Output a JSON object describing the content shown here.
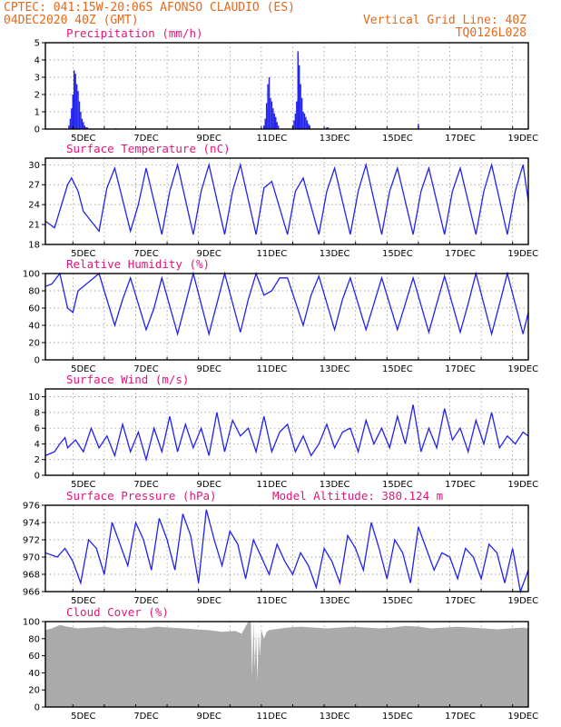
{
  "header": {
    "line1_left": "CPTEC:   041:15W-20:06S  AFONSO CLAUDIO (ES)",
    "line2_left": "04DEC2020 40Z (GMT)",
    "line1_right": "Vertical Grid Line: 40Z",
    "line2_right": "TQ0126L028"
  },
  "x_axis": {
    "labels": [
      "5DEC",
      "7DEC",
      "9DEC",
      "11DEC",
      "13DEC",
      "15DEC",
      "17DEC",
      "19DEC"
    ],
    "start_hours": -5,
    "end_hours": 364
  },
  "colors": {
    "header": "#e3691a",
    "title": "#e0167a",
    "series": "#2222ee",
    "cloud": "#aaaaaa"
  },
  "chart_data": [
    {
      "type": "bar",
      "title": "Precipitation (mm/h)",
      "ylim": [
        0,
        5
      ],
      "yticks": [
        0,
        1,
        2,
        3,
        4,
        5
      ],
      "x_unit": "hours since 04DEC2020 00Z",
      "x": [
        13,
        14,
        15,
        16,
        17,
        18,
        19,
        20,
        21,
        22,
        23,
        24,
        25,
        26,
        27,
        49,
        162,
        163,
        164,
        165,
        166,
        167,
        168,
        169,
        170,
        171,
        172,
        173,
        184,
        185,
        186,
        187,
        188,
        189,
        190,
        191,
        192,
        193,
        194,
        195,
        196,
        197,
        210,
        211,
        232,
        280
      ],
      "values": [
        0.2,
        0.6,
        1.2,
        2.0,
        3.4,
        3.2,
        2.6,
        2.2,
        1.6,
        1.0,
        0.6,
        0.4,
        0.2,
        0.1,
        0.1,
        0.05,
        0.2,
        0.6,
        1.5,
        2.6,
        3.0,
        1.8,
        1.6,
        1.2,
        0.9,
        0.7,
        0.4,
        0.2,
        0.2,
        0.5,
        0.9,
        1.6,
        4.5,
        3.7,
        2.6,
        1.8,
        1.0,
        0.9,
        0.7,
        0.5,
        0.3,
        0.2,
        0.1,
        0.1,
        0.08,
        0.3
      ]
    },
    {
      "type": "line",
      "title": "Surface Temperature (nC)",
      "ylim": [
        18,
        31
      ],
      "yticks": [
        18,
        21,
        24,
        27,
        30
      ],
      "x_unit": "hours since 04DEC2020 00Z",
      "x": [
        -5,
        2,
        12,
        15,
        20,
        24,
        36,
        42,
        48,
        60,
        66,
        72,
        84,
        90,
        96,
        108,
        114,
        120,
        132,
        138,
        144,
        156,
        162,
        168,
        180,
        186,
        192,
        204,
        210,
        216,
        228,
        234,
        240,
        252,
        258,
        264,
        276,
        282,
        288,
        300,
        306,
        312,
        324,
        330,
        336,
        348,
        354,
        360,
        364
      ],
      "values": [
        21.5,
        20.5,
        27.0,
        28.0,
        26.0,
        23.0,
        20.0,
        26.5,
        29.5,
        20.0,
        24.0,
        29.5,
        19.5,
        26.0,
        30.0,
        19.5,
        26.0,
        30.0,
        19.5,
        26.0,
        30.0,
        19.5,
        26.5,
        27.5,
        19.5,
        26.0,
        28.0,
        19.5,
        26.0,
        29.5,
        19.5,
        26.0,
        30.0,
        19.5,
        26.0,
        29.5,
        19.5,
        26.0,
        29.5,
        19.5,
        26.0,
        29.5,
        19.5,
        26.0,
        30.0,
        19.5,
        26.0,
        30.0,
        24.5
      ]
    },
    {
      "type": "line",
      "title": "Relative Humidity (%)",
      "ylim": [
        0,
        100
      ],
      "yticks": [
        0,
        20,
        40,
        60,
        80,
        100
      ],
      "x_unit": "hours since 04DEC2020 00Z",
      "x": [
        -5,
        0,
        6,
        12,
        16,
        20,
        28,
        36,
        48,
        54,
        60,
        72,
        78,
        84,
        96,
        102,
        108,
        120,
        126,
        132,
        144,
        150,
        156,
        162,
        168,
        174,
        180,
        192,
        198,
        204,
        216,
        222,
        228,
        240,
        246,
        252,
        264,
        270,
        276,
        288,
        294,
        300,
        312,
        318,
        324,
        336,
        342,
        348,
        360,
        364
      ],
      "values": [
        85,
        88,
        100,
        60,
        55,
        80,
        90,
        100,
        40,
        70,
        95,
        35,
        60,
        95,
        30,
        65,
        100,
        30,
        65,
        100,
        32,
        70,
        100,
        75,
        80,
        95,
        95,
        40,
        75,
        97,
        35,
        70,
        95,
        35,
        65,
        95,
        35,
        65,
        95,
        32,
        65,
        97,
        32,
        65,
        100,
        30,
        65,
        100,
        30,
        55
      ]
    },
    {
      "type": "line",
      "title": "Surface Wind (m/s)",
      "ylim": [
        0,
        11
      ],
      "yticks": [
        0,
        2,
        4,
        6,
        8,
        10
      ],
      "x_unit": "hours since 04DEC2020 00Z",
      "x": [
        -5,
        2,
        6,
        10,
        12,
        18,
        24,
        30,
        36,
        42,
        48,
        54,
        60,
        66,
        72,
        78,
        84,
        90,
        96,
        102,
        108,
        114,
        120,
        126,
        132,
        138,
        144,
        150,
        156,
        162,
        168,
        174,
        180,
        186,
        192,
        198,
        204,
        210,
        216,
        222,
        228,
        234,
        240,
        246,
        252,
        258,
        264,
        270,
        276,
        282,
        288,
        294,
        300,
        306,
        312,
        318,
        324,
        330,
        336,
        342,
        348,
        354,
        360,
        364
      ],
      "values": [
        2.5,
        3.0,
        4.0,
        4.8,
        3.5,
        4.5,
        3.0,
        6.0,
        3.5,
        5.0,
        2.5,
        6.5,
        3.0,
        5.5,
        2.0,
        6.0,
        3.0,
        7.5,
        3.0,
        6.5,
        3.5,
        6.0,
        2.5,
        8.0,
        3.0,
        7.0,
        5.0,
        6.0,
        3.0,
        7.5,
        3.0,
        5.5,
        6.5,
        3.0,
        5.0,
        2.5,
        4.0,
        6.5,
        3.5,
        5.5,
        6.0,
        3.0,
        7.0,
        4.0,
        6.0,
        3.5,
        7.5,
        4.0,
        9.0,
        3.0,
        6.0,
        3.5,
        8.5,
        4.5,
        6.0,
        3.0,
        7.0,
        4.0,
        8.0,
        3.5,
        5.0,
        4.0,
        5.5,
        5.0
      ]
    },
    {
      "type": "line",
      "title": "Surface Pressure (hPa)",
      "annotation": "Model Altitude: 380.124 m",
      "ylim": [
        966,
        976
      ],
      "yticks": [
        966,
        968,
        970,
        972,
        974,
        976
      ],
      "x_unit": "hours since 04DEC2020 00Z",
      "x": [
        -5,
        4,
        10,
        16,
        22,
        28,
        34,
        40,
        46,
        52,
        58,
        64,
        70,
        76,
        82,
        88,
        94,
        100,
        106,
        112,
        118,
        124,
        130,
        136,
        142,
        148,
        154,
        160,
        166,
        172,
        178,
        184,
        190,
        196,
        202,
        208,
        214,
        220,
        226,
        232,
        238,
        244,
        250,
        256,
        262,
        268,
        274,
        280,
        286,
        292,
        298,
        304,
        310,
        316,
        322,
        328,
        334,
        340,
        346,
        352,
        358,
        364
      ],
      "values": [
        970.5,
        970.0,
        971.0,
        969.5,
        967.0,
        972.0,
        971.0,
        968.0,
        974.0,
        971.5,
        969.0,
        974.0,
        972.0,
        968.5,
        974.5,
        972.0,
        968.5,
        975.0,
        972.5,
        967.0,
        975.5,
        972.0,
        969.0,
        973.0,
        971.5,
        967.5,
        972.0,
        970.0,
        968.0,
        971.5,
        969.5,
        968.0,
        970.5,
        969.0,
        966.5,
        971.0,
        969.5,
        967.0,
        972.5,
        971.0,
        968.5,
        974.0,
        971.0,
        967.5,
        972.0,
        970.5,
        967.0,
        973.5,
        971.0,
        968.5,
        970.5,
        970.0,
        967.5,
        971.0,
        970.0,
        967.5,
        971.5,
        970.5,
        967.0,
        971.0,
        966.0,
        968.5
      ]
    },
    {
      "type": "area",
      "title": "Cloud Cover (%)",
      "ylim": [
        0,
        100
      ],
      "yticks": [
        0,
        20,
        40,
        60,
        80,
        100
      ],
      "x_unit": "hours since 04DEC2020 00Z",
      "x": [
        -5,
        0,
        6,
        12,
        20,
        30,
        40,
        50,
        60,
        70,
        80,
        90,
        100,
        110,
        120,
        130,
        140,
        145,
        150,
        151,
        152,
        153,
        154,
        155,
        156,
        157,
        158,
        159,
        160,
        162,
        164,
        166,
        170,
        180,
        190,
        200,
        210,
        220,
        230,
        240,
        250,
        260,
        270,
        280,
        290,
        300,
        310,
        320,
        330,
        340,
        350,
        360,
        364
      ],
      "values": [
        90,
        92,
        96,
        94,
        92,
        93,
        94,
        92,
        93,
        92,
        94,
        93,
        92,
        91,
        90,
        88,
        89,
        86,
        100,
        100,
        100,
        35,
        100,
        45,
        90,
        30,
        88,
        60,
        90,
        80,
        88,
        90,
        91,
        93,
        94,
        93,
        92,
        93,
        94,
        93,
        92,
        93,
        95,
        94,
        92,
        93,
        94,
        93,
        92,
        91,
        92,
        93,
        92
      ]
    }
  ]
}
